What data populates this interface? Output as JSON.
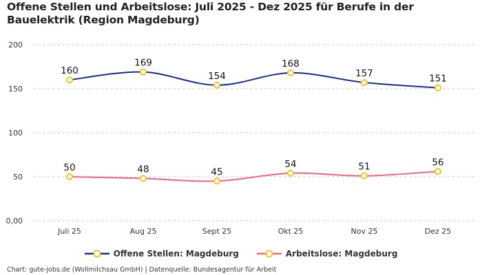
{
  "title": "Offene Stellen und Arbeitslose: Juli 2025 - Dez 2025 für Berufe in der Bauelektrik (Region Magdeburg)",
  "credit": "Chart: gute-jobs.de (Wollmilchsau GmbH) | Datenquelle: Bundesagentur für Arbeit",
  "chart_data": {
    "type": "line",
    "title": "Offene Stellen und Arbeitslose: Juli 2025 - Dez 2025 für Berufe in der Bauelektrik (Region Magdeburg)",
    "categories": [
      "Juli 25",
      "Aug 25",
      "Sept 25",
      "Okt 25",
      "Nov 25",
      "Dez 25"
    ],
    "yticks": [
      "0,00",
      "50",
      "100",
      "150",
      "200"
    ],
    "ylim": [
      0,
      200
    ],
    "grid": true,
    "legend_position": "bottom",
    "series": [
      {
        "name": "Offene Stellen: Magdeburg",
        "color": "#1a2b8c",
        "values": [
          160,
          169,
          154,
          168,
          157,
          151
        ]
      },
      {
        "name": "Arbeitslose: Magdeburg",
        "color": "#f0637c",
        "values": [
          50,
          48,
          45,
          54,
          51,
          56
        ]
      }
    ],
    "marker_color": "#f5c518"
  }
}
